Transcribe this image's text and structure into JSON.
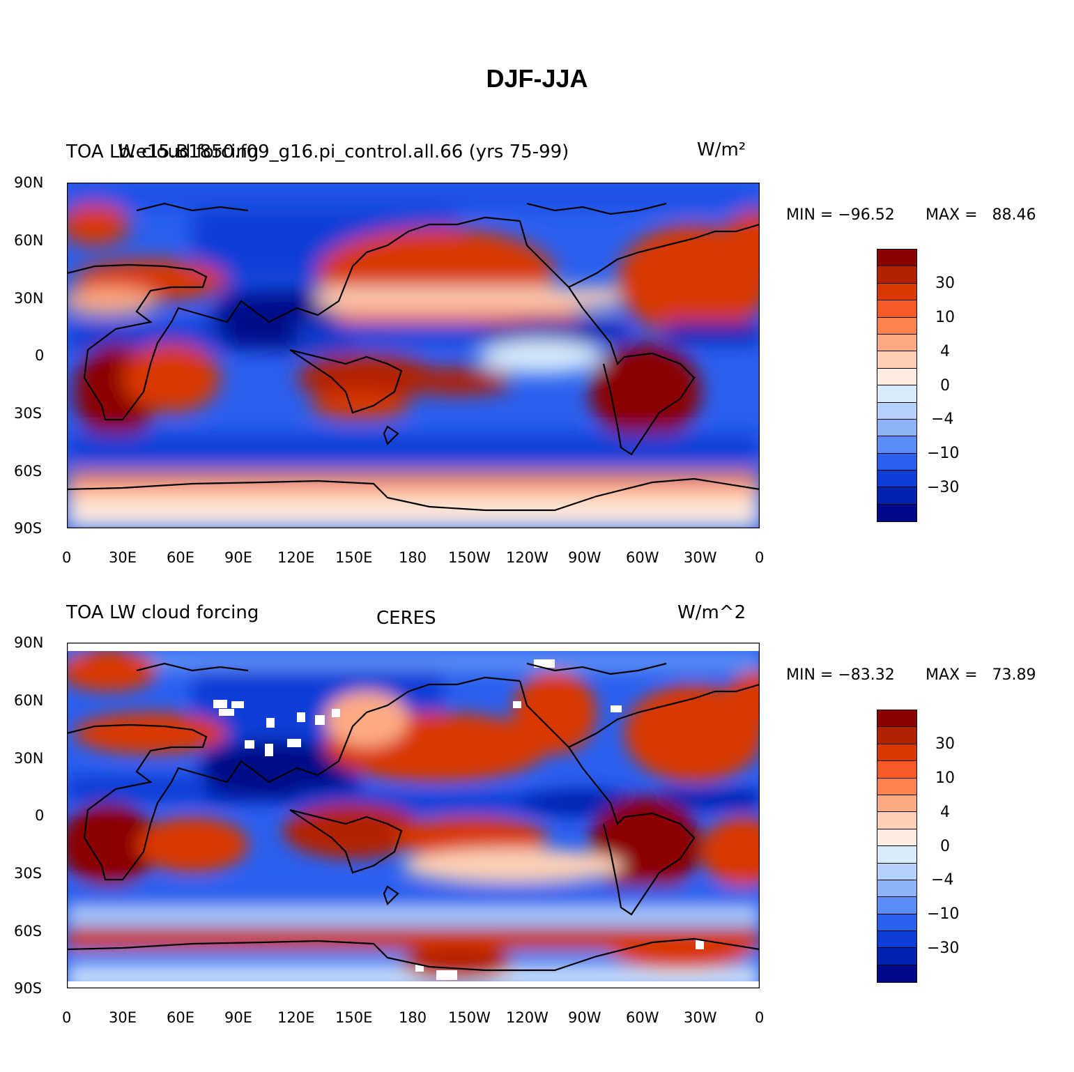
{
  "figure_title": "DJF-JJA",
  "panels": [
    {
      "id": "model",
      "left_label": "TOA LW cloud forcing",
      "center_label": "b.e15.B1850.f09_g16.pi_control.all.66 (yrs 75-99)",
      "units": "W/m²",
      "min_label": "MIN = −96.52",
      "max_label": "MAX =   88.46",
      "min": -96.52,
      "max": 88.46
    },
    {
      "id": "obs",
      "left_label": "TOA LW cloud forcing",
      "center_label": "CERES",
      "units": "W/m^2",
      "min_label": "MIN = −83.32",
      "max_label": "MAX =   73.89",
      "min": -83.32,
      "max": 73.89
    }
  ],
  "axes": {
    "lat_ticks": [
      "90N",
      "60N",
      "30N",
      "0",
      "30S",
      "60S",
      "90S"
    ],
    "lon_ticks": [
      "0",
      "30E",
      "60E",
      "90E",
      "120E",
      "150E",
      "180",
      "150W",
      "120W",
      "90W",
      "60W",
      "30W",
      "0"
    ]
  },
  "colorbar": {
    "colors": [
      "#8b0000",
      "#b22200",
      "#d93800",
      "#f75a26",
      "#fc8250",
      "#fdaa84",
      "#fdd0b6",
      "#feece0",
      "#d7ebfb",
      "#b4d2fb",
      "#8db4f9",
      "#5a8cf5",
      "#2a60ee",
      "#0d3ed6",
      "#0422b0",
      "#000a88"
    ],
    "labels": [
      "30",
      "10",
      "4",
      "0",
      "−4",
      "−10",
      "−30"
    ]
  },
  "chart_data": {
    "type": "heatmap",
    "title": "DJF-JJA",
    "panels": [
      "TOA LW cloud forcing — b.e15.B1850.f09_g16.pi_control.all.66 (yrs 75-99)",
      "TOA LW cloud forcing — CERES"
    ],
    "x_range": [
      0,
      360
    ],
    "y_range": [
      -90,
      90
    ],
    "colorbar_levels": [
      30,
      10,
      4,
      0,
      -4,
      -10,
      -30
    ],
    "min": [
      -96.52,
      -83.32
    ],
    "max": [
      88.46,
      73.89
    ]
  }
}
